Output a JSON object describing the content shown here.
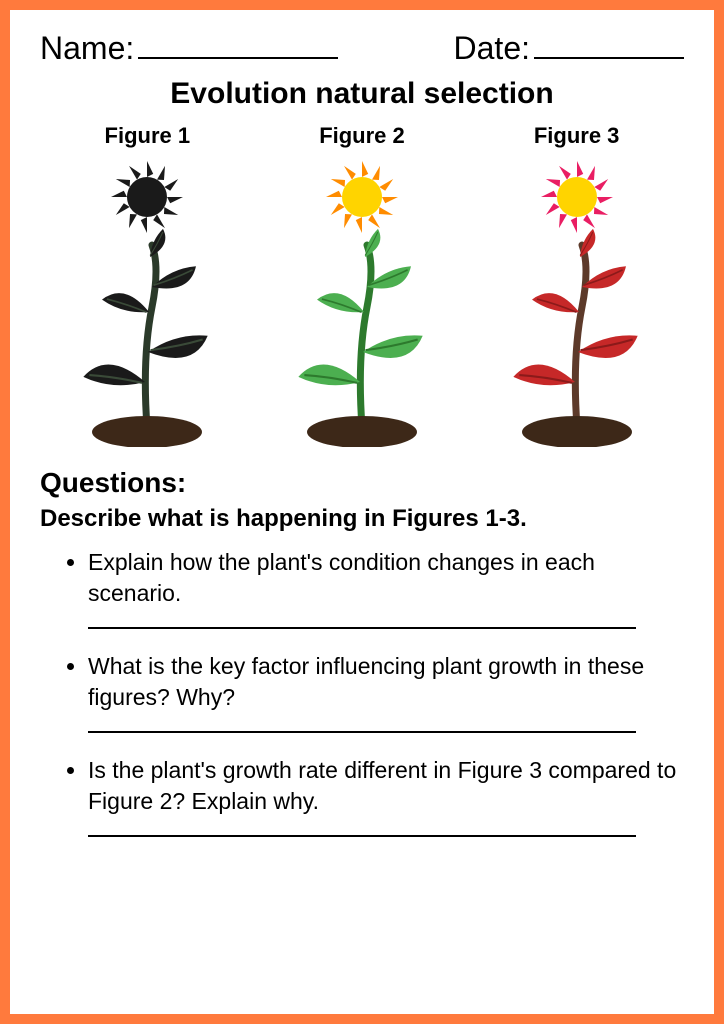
{
  "header": {
    "name_label": "Name:",
    "date_label": "Date:"
  },
  "title": "Evolution natural selection",
  "figures": [
    {
      "label": "Figure 1",
      "sun_fill": "#1a1a1a",
      "sun_outer": "#1a1a1a",
      "stem_color": "#2b3a2a",
      "leaf_color": "#1a1a1a",
      "leaf_vein": "#3a4a38",
      "soil_color": "#3d2818"
    },
    {
      "label": "Figure 2",
      "sun_fill": "#ffd400",
      "sun_outer": "#ff8c00",
      "stem_color": "#2d7a2d",
      "leaf_color": "#4caf50",
      "leaf_vein": "#2d7a2d",
      "soil_color": "#3d2818"
    },
    {
      "label": "Figure 3",
      "sun_fill": "#ffd400",
      "sun_outer": "#e91e63",
      "stem_color": "#5d3a2a",
      "leaf_color": "#c62828",
      "leaf_vein": "#8b1a1a",
      "soil_color": "#3d2818"
    }
  ],
  "questions_heading": "Questions:",
  "describe_heading": "Describe what is happening in Figures 1-3.",
  "questions": [
    "Explain how the plant's condition changes in each scenario.",
    "What is the key factor influencing plant growth in these figures? Why?",
    "Is the plant's growth rate different in Figure 3 compared to Figure 2? Explain why."
  ],
  "colors": {
    "border": "#ff7a3d",
    "text": "#000000",
    "background": "#ffffff"
  }
}
